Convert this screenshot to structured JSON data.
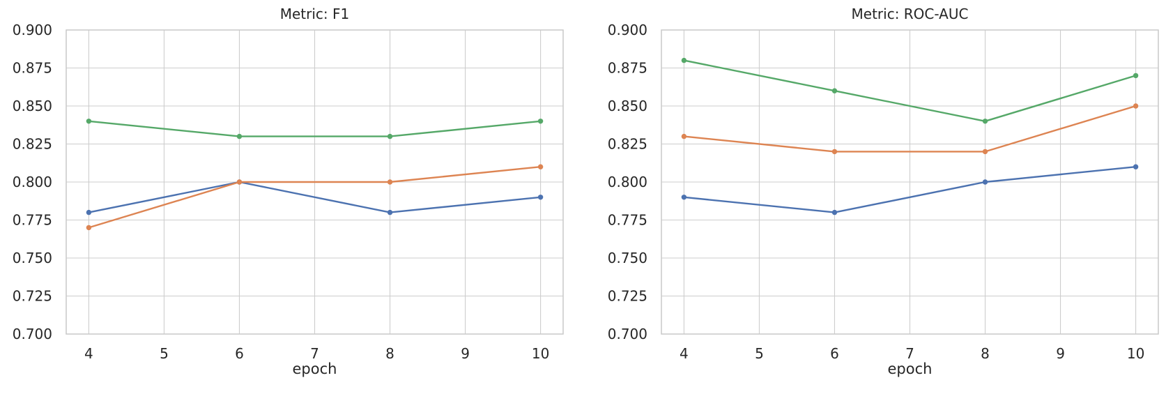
{
  "style": {
    "background": "#ffffff",
    "text_color": "#262626",
    "grid_color": "#cdcdcd",
    "spine_color": "#c9c9c9"
  },
  "chart_data": [
    {
      "type": "line",
      "title": "Metric: F1",
      "xlabel": "epoch",
      "ylabel": "",
      "grid": true,
      "legend_position": "none",
      "x": [
        4,
        6,
        8,
        10
      ],
      "xticks": [
        4,
        5,
        6,
        7,
        8,
        9,
        10
      ],
      "yticks": [
        0.7,
        0.725,
        0.75,
        0.775,
        0.8,
        0.825,
        0.85,
        0.875,
        0.9
      ],
      "xlim": [
        3.7,
        10.3
      ],
      "ylim": [
        0.7,
        0.9
      ],
      "series": [
        {
          "name": "series-1",
          "color": "#4C72B0",
          "values": [
            0.78,
            0.8,
            0.78,
            0.79
          ]
        },
        {
          "name": "series-2",
          "color": "#DD8452",
          "values": [
            0.77,
            0.8,
            0.8,
            0.81
          ]
        },
        {
          "name": "series-3",
          "color": "#55A868",
          "values": [
            0.84,
            0.83,
            0.83,
            0.84
          ]
        }
      ]
    },
    {
      "type": "line",
      "title": "Metric: ROC-AUC",
      "xlabel": "epoch",
      "ylabel": "",
      "grid": true,
      "legend_position": "none",
      "x": [
        4,
        6,
        8,
        10
      ],
      "xticks": [
        4,
        5,
        6,
        7,
        8,
        9,
        10
      ],
      "yticks": [
        0.7,
        0.725,
        0.75,
        0.775,
        0.8,
        0.825,
        0.85,
        0.875,
        0.9
      ],
      "xlim": [
        3.7,
        10.3
      ],
      "ylim": [
        0.7,
        0.9
      ],
      "series": [
        {
          "name": "series-1",
          "color": "#4C72B0",
          "values": [
            0.79,
            0.78,
            0.8,
            0.81
          ]
        },
        {
          "name": "series-2",
          "color": "#DD8452",
          "values": [
            0.83,
            0.82,
            0.82,
            0.85
          ]
        },
        {
          "name": "series-3",
          "color": "#55A868",
          "values": [
            0.88,
            0.86,
            0.84,
            0.87
          ]
        }
      ]
    }
  ]
}
